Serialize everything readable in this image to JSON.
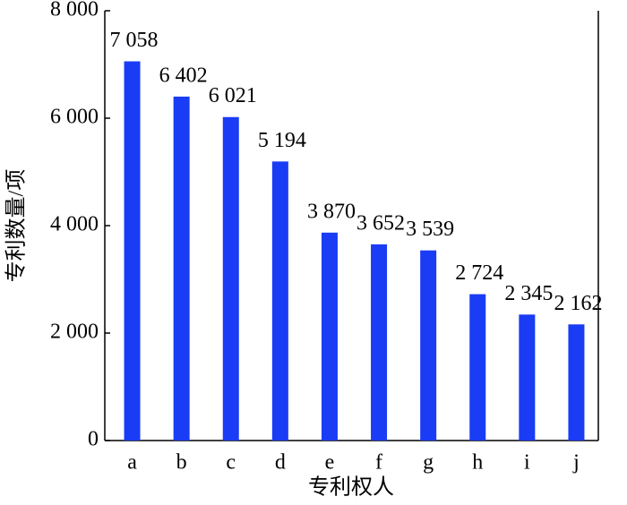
{
  "chart_data": {
    "type": "bar",
    "x_label": "专利权人",
    "y_label": "专利数量/项",
    "categories": [
      "a",
      "b",
      "c",
      "d",
      "e",
      "f",
      "g",
      "h",
      "i",
      "j"
    ],
    "values": [
      7058,
      6402,
      6021,
      5194,
      3870,
      3652,
      3539,
      2724,
      2345,
      2162
    ],
    "value_labels": [
      "7 058",
      "6 402",
      "6 021",
      "5 194",
      "3 870",
      "3 652",
      "3 539",
      "2 724",
      "2 345",
      "2 162"
    ],
    "color": "#1a3cf5",
    "ylim": [
      0,
      8000
    ],
    "yticks": [
      0,
      {
        "value": 2000,
        "label": "2 000"
      },
      {
        "value": 4000,
        "label": "4 000"
      },
      {
        "value": 6000,
        "label": "6 000"
      },
      {
        "value": 8000,
        "label": "8 000"
      }
    ]
  }
}
